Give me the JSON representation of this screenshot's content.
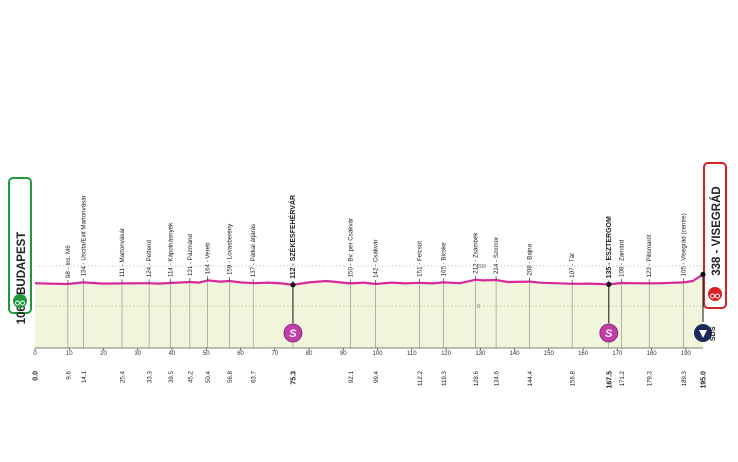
{
  "chart_data": {
    "type": "area",
    "x_unit": "km",
    "xlim": [
      0,
      195
    ],
    "x_ticks": [
      0,
      10,
      20,
      30,
      40,
      50,
      60,
      70,
      80,
      90,
      100,
      110,
      120,
      130,
      140,
      150,
      160,
      170,
      180,
      190
    ],
    "altitude_ticks": [
      {
        "label": "200",
        "alt": 200
      },
      {
        "label": "0",
        "alt": 0
      }
    ],
    "colors": {
      "profile_line": "#d9289b",
      "fill": "#f1f5dc",
      "start_green": "#1e9a3a",
      "finish_red": "#d42027",
      "sprint_purple": "#c13ea8",
      "sds_navy": "#1b2a5a"
    },
    "profile": [
      [
        0,
        114
      ],
      [
        4,
        112
      ],
      [
        9.6,
        110
      ],
      [
        14.1,
        118
      ],
      [
        20,
        112
      ],
      [
        25.4,
        113
      ],
      [
        33.3,
        114
      ],
      [
        36,
        112
      ],
      [
        39.5,
        115
      ],
      [
        45.2,
        120
      ],
      [
        48,
        117
      ],
      [
        50.4,
        128
      ],
      [
        54,
        122
      ],
      [
        56.8,
        125
      ],
      [
        60,
        118
      ],
      [
        63.7,
        114
      ],
      [
        68,
        117
      ],
      [
        72,
        113
      ],
      [
        75.3,
        106
      ],
      [
        80,
        118
      ],
      [
        85,
        125
      ],
      [
        92.1,
        113
      ],
      [
        96,
        117
      ],
      [
        99.4,
        110
      ],
      [
        104,
        117
      ],
      [
        108,
        113
      ],
      [
        112.2,
        116
      ],
      [
        116,
        113
      ],
      [
        119.3,
        118
      ],
      [
        124,
        114
      ],
      [
        128.6,
        131
      ],
      [
        131,
        128
      ],
      [
        134.6,
        130
      ],
      [
        138,
        120
      ],
      [
        144.4,
        122
      ],
      [
        148,
        116
      ],
      [
        152,
        114
      ],
      [
        156.8,
        111
      ],
      [
        162,
        112
      ],
      [
        167.5,
        108
      ],
      [
        171.2,
        115
      ],
      [
        175,
        114
      ],
      [
        179.3,
        113
      ],
      [
        183,
        114
      ],
      [
        189.3,
        118
      ],
      [
        192,
        125
      ],
      [
        195,
        158
      ]
    ],
    "points": [
      {
        "label": "98 - Ins. M6",
        "km": 9.6,
        "km_label": "9.6"
      },
      {
        "label": "134 - Uscita/Exit Martonvásár",
        "km": 14.1,
        "km_label": "14.1"
      },
      {
        "label": "111 - Martonvásár",
        "km": 25.4,
        "km_label": "25.4"
      },
      {
        "label": "124 - Pettend",
        "km": 33.3,
        "km_label": "33.3"
      },
      {
        "label": "114 - Kápolnásnyék",
        "km": 39.5,
        "km_label": "39.5"
      },
      {
        "label": "131 - Pázmánd",
        "km": 45.2,
        "km_label": "45.2"
      },
      {
        "label": "164 - Vereb",
        "km": 50.4,
        "km_label": "50.4"
      },
      {
        "label": "159 - Lovasberény",
        "km": 56.8,
        "km_label": "56.8"
      },
      {
        "label": "137 - Pátkai átjárás",
        "km": 63.7,
        "km_label": "63.7"
      },
      {
        "label": "112 - SZÉKESFEHÉRVÁR",
        "km": 75.3,
        "km_label": "75.3",
        "bold": true,
        "sprint": true
      },
      {
        "label": "150 - Bv. per Csákvár",
        "km": 92.1,
        "km_label": "92.1"
      },
      {
        "label": "142 - Csákvár",
        "km": 99.4,
        "km_label": "99.4"
      },
      {
        "label": "151 - Felcsút",
        "km": 112.2,
        "km_label": "112.2"
      },
      {
        "label": "165 - Bicske",
        "km": 119.3,
        "km_label": "119.3"
      },
      {
        "label": "212 - Zsámbék",
        "km": 128.6,
        "km_label": "128.6"
      },
      {
        "label": "214 - Szomor",
        "km": 134.6,
        "km_label": "134.6"
      },
      {
        "label": "208 - Bajna",
        "km": 144.4,
        "km_label": "144.4"
      },
      {
        "label": "107 - Tát",
        "km": 156.8,
        "km_label": "156.8"
      },
      {
        "label": "135 - ESZTERGOM",
        "km": 167.5,
        "km_label": "167.5",
        "bold": true,
        "sprint": true
      },
      {
        "label": "108 - Zamárd",
        "km": 171.2,
        "km_label": "171.2"
      },
      {
        "label": "123 - Pilismarót",
        "km": 179.3,
        "km_label": "179.3"
      },
      {
        "label": "105 - Visegrád (centre)",
        "km": 189.3,
        "km_label": "189.3"
      }
    ],
    "start": {
      "label": "106 - BUDAPEST",
      "km_label": "0.0"
    },
    "finish": {
      "label": "338 - VISEGRÁD",
      "km_label": "195.0"
    },
    "sprint_badge": "S",
    "sds_label": "SDS"
  }
}
